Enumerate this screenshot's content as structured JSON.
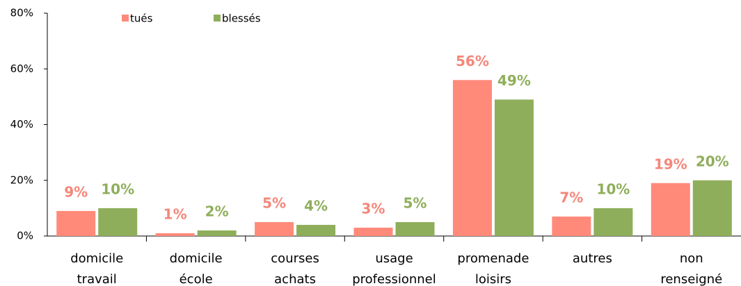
{
  "chart_data": {
    "type": "bar",
    "categories": [
      [
        "domicile",
        "travail"
      ],
      [
        "domicile",
        "école"
      ],
      [
        "courses",
        "achats"
      ],
      [
        "usage",
        "professionnel"
      ],
      [
        "promenade",
        "loisirs"
      ],
      [
        "autres"
      ],
      [
        "non",
        "renseigné"
      ]
    ],
    "series": [
      {
        "name": "tués",
        "color": "#ff8a7a",
        "label_color": "#f4877a",
        "values": [
          9,
          1,
          5,
          3,
          56,
          7,
          19
        ],
        "value_labels": [
          "9%",
          "1%",
          "5%",
          "3%",
          "56%",
          "7%",
          "19%"
        ]
      },
      {
        "name": "blessés",
        "color": "#8fae5b",
        "label_color": "#8fae5b",
        "values": [
          10,
          2,
          4,
          5,
          49,
          10,
          20
        ],
        "value_labels": [
          "10%",
          "2%",
          "4%",
          "5%",
          "49%",
          "10%",
          "20%"
        ]
      }
    ],
    "ylim": [
      0,
      80
    ],
    "yticks": [
      {
        "value": 0,
        "label": "0%"
      },
      {
        "value": 20,
        "label": "20%"
      },
      {
        "value": 40,
        "label": "40%"
      },
      {
        "value": 60,
        "label": "60%"
      },
      {
        "value": 80,
        "label": "80%"
      }
    ],
    "grid": false,
    "legend": "top"
  }
}
